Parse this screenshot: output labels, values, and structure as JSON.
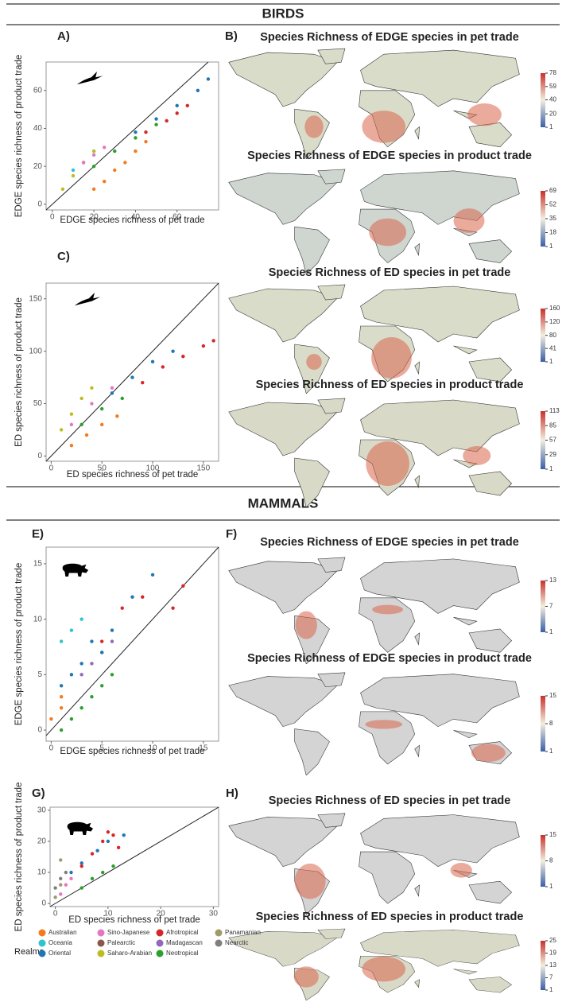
{
  "sections": [
    {
      "title": "BIRDS"
    },
    {
      "title": "MAMMALS"
    }
  ],
  "panel_labels": [
    "A)",
    "B)",
    "C)",
    "E)",
    "F)",
    "G)",
    "H)"
  ],
  "chart_data": [
    {
      "type": "scatter",
      "x_label": "EDGE species richness of pet trade",
      "y_label": "EDGE species richness of product trade",
      "xlim": [
        -3,
        80
      ],
      "ylim": [
        -3,
        75
      ],
      "xticks": [
        0,
        20,
        40,
        60
      ],
      "yticks": [
        0,
        20,
        40,
        60
      ],
      "series": [
        {
          "color": "#f47a20",
          "x": [
            20,
            25,
            30,
            35,
            40,
            45
          ],
          "y": [
            8,
            12,
            18,
            22,
            28,
            33
          ]
        },
        {
          "color": "#2ec3d0",
          "x": [
            10,
            15,
            20
          ],
          "y": [
            18,
            22,
            28
          ]
        },
        {
          "color": "#bcbd22",
          "x": [
            5,
            10,
            15,
            20
          ],
          "y": [
            8,
            15,
            22,
            28
          ]
        },
        {
          "color": "#e377c2",
          "x": [
            15,
            20,
            25
          ],
          "y": [
            22,
            26,
            30
          ]
        },
        {
          "color": "#2ca02c",
          "x": [
            20,
            30,
            40,
            50
          ],
          "y": [
            20,
            28,
            35,
            42
          ]
        },
        {
          "color": "#d62728",
          "x": [
            45,
            55,
            60,
            65
          ],
          "y": [
            38,
            44,
            48,
            52
          ]
        },
        {
          "color": "#1f77b4",
          "x": [
            40,
            50,
            60,
            70,
            75
          ],
          "y": [
            38,
            45,
            52,
            60,
            66
          ]
        }
      ]
    },
    {
      "type": "scatter",
      "x_label": "ED species richness of pet trade",
      "y_label": "ED species richness of product trade",
      "xlim": [
        -5,
        165
      ],
      "ylim": [
        -5,
        165
      ],
      "xticks": [
        0,
        50,
        100,
        150
      ],
      "yticks": [
        0,
        50,
        100,
        150
      ],
      "series": [
        {
          "color": "#f47a20",
          "x": [
            20,
            35,
            50,
            65
          ],
          "y": [
            10,
            20,
            30,
            38
          ]
        },
        {
          "color": "#bcbd22",
          "x": [
            10,
            20,
            30,
            40
          ],
          "y": [
            25,
            40,
            55,
            65
          ]
        },
        {
          "color": "#e377c2",
          "x": [
            20,
            40,
            60
          ],
          "y": [
            30,
            50,
            65
          ]
        },
        {
          "color": "#2ca02c",
          "x": [
            30,
            50,
            70
          ],
          "y": [
            30,
            45,
            55
          ]
        },
        {
          "color": "#1f77b4",
          "x": [
            60,
            80,
            100,
            120
          ],
          "y": [
            60,
            75,
            90,
            100
          ]
        },
        {
          "color": "#d62728",
          "x": [
            90,
            110,
            130,
            150,
            160
          ],
          "y": [
            70,
            85,
            95,
            105,
            110
          ]
        }
      ]
    },
    {
      "type": "scatter",
      "x_label": "EDGE species richness of pet trade",
      "y_label": "EDGE species richness of product trade",
      "xlim": [
        -0.5,
        16.5
      ],
      "ylim": [
        -1,
        16.5
      ],
      "xticks": [
        0,
        5,
        10,
        15
      ],
      "yticks": [
        0,
        5,
        10,
        15
      ],
      "series": [
        {
          "color": "#f47a20",
          "x": [
            0,
            1,
            1
          ],
          "y": [
            1,
            2,
            3
          ]
        },
        {
          "color": "#2ec3d0",
          "x": [
            1,
            2,
            3
          ],
          "y": [
            8,
            9,
            10
          ]
        },
        {
          "color": "#2ca02c",
          "x": [
            1,
            2,
            3,
            4,
            5,
            6
          ],
          "y": [
            0,
            1,
            2,
            3,
            4,
            5
          ]
        },
        {
          "color": "#9467bd",
          "x": [
            3,
            4,
            5,
            6
          ],
          "y": [
            5,
            6,
            7,
            8
          ]
        },
        {
          "color": "#1f77b4",
          "x": [
            1,
            2,
            3,
            4,
            5,
            6,
            8,
            10
          ],
          "y": [
            4,
            5,
            6,
            8,
            7,
            9,
            12,
            14
          ]
        },
        {
          "color": "#d62728",
          "x": [
            5,
            7,
            9,
            12,
            13
          ],
          "y": [
            8,
            11,
            12,
            11,
            13
          ]
        }
      ]
    },
    {
      "type": "scatter",
      "x_label": "ED species richness of pet trade",
      "y_label": "ED species richness of product trade",
      "xlim": [
        -1,
        31
      ],
      "ylim": [
        -1,
        31
      ],
      "xticks": [
        0,
        10,
        20,
        30
      ],
      "yticks": [
        0,
        10,
        20,
        30
      ],
      "series": [
        {
          "color": "#7f7f7f",
          "x": [
            0,
            1,
            2
          ],
          "y": [
            5,
            8,
            10
          ]
        },
        {
          "color": "#a09a68",
          "x": [
            0,
            1,
            1
          ],
          "y": [
            2,
            6,
            14
          ]
        },
        {
          "color": "#e377c2",
          "x": [
            1,
            2,
            3
          ],
          "y": [
            3,
            6,
            8
          ]
        },
        {
          "color": "#2ca02c",
          "x": [
            5,
            7,
            9,
            11
          ],
          "y": [
            5,
            8,
            10,
            12
          ]
        },
        {
          "color": "#1f77b4",
          "x": [
            3,
            5,
            8,
            10,
            13
          ],
          "y": [
            10,
            13,
            17,
            20,
            22
          ]
        },
        {
          "color": "#d62728",
          "x": [
            5,
            7,
            9,
            10,
            11,
            12
          ],
          "y": [
            12,
            16,
            20,
            23,
            22,
            18
          ]
        }
      ]
    }
  ],
  "maps": [
    {
      "title": "Species Richness of EDGE species in pet trade",
      "colorbar_ticks": [
        1,
        20,
        40,
        59,
        78
      ]
    },
    {
      "title": "Species Richness of EDGE species in product trade",
      "colorbar_ticks": [
        1,
        18,
        35,
        52,
        69
      ]
    },
    {
      "title": "Species Richness of ED species in pet trade",
      "colorbar_ticks": [
        1,
        41,
        80,
        120,
        160
      ]
    },
    {
      "title": "Species Richness of ED species in product trade",
      "colorbar_ticks": [
        1,
        29,
        57,
        85,
        113
      ]
    },
    {
      "title": "Species Richness of EDGE species in pet trade",
      "colorbar_ticks": [
        1,
        7,
        13
      ]
    },
    {
      "title": "Species Richness of EDGE species in product trade",
      "colorbar_ticks": [
        1,
        8,
        15
      ]
    },
    {
      "title": "Species Richness of ED species in pet trade",
      "colorbar_ticks": [
        1,
        8,
        15
      ]
    },
    {
      "title": "Species Richness of ED species in product trade",
      "colorbar_ticks": [
        1,
        7,
        13,
        19,
        25
      ]
    }
  ],
  "legend": {
    "title": "Realms",
    "items": [
      {
        "name": "Australian",
        "color": "#f47a20"
      },
      {
        "name": "Oceania",
        "color": "#2ec3d0"
      },
      {
        "name": "Oriental",
        "color": "#1f77b4"
      },
      {
        "name": "Sino-Japanese",
        "color": "#e377c2"
      },
      {
        "name": "Palearctic",
        "color": "#8c564b"
      },
      {
        "name": "Saharo-Arabian",
        "color": "#bcbd22"
      },
      {
        "name": "Afrotropical",
        "color": "#d62728"
      },
      {
        "name": "Madagascan",
        "color": "#9467bd"
      },
      {
        "name": "Neotropical",
        "color": "#2ca02c"
      },
      {
        "name": "Panamanian",
        "color": "#a09a68"
      },
      {
        "name": "Nearctic",
        "color": "#7f7f7f"
      }
    ]
  }
}
